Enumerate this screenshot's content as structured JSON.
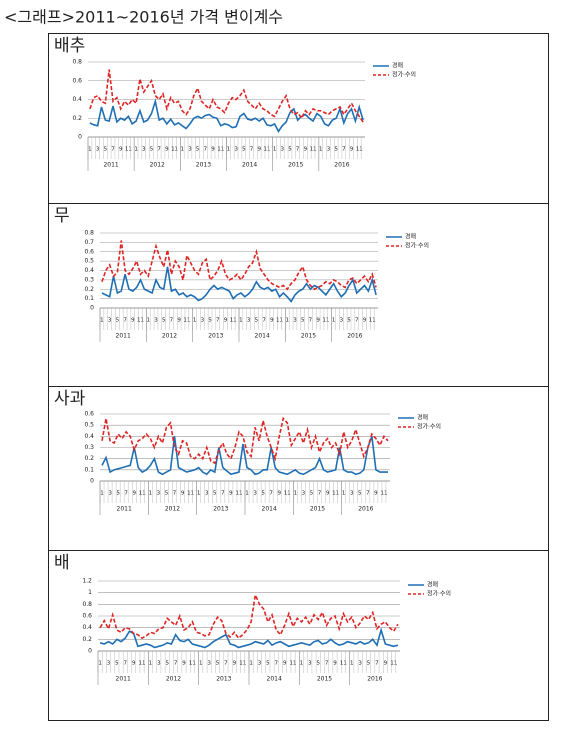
{
  "title": "<그래프>2011~2016년 가격 변이계수",
  "chart_data": [
    {
      "type": "line",
      "title": "배추",
      "categories": [
        "1",
        null,
        "3",
        null,
        "5",
        null,
        "7",
        null,
        "9",
        null,
        "11",
        null,
        "1",
        null,
        "3",
        null,
        "5",
        null,
        "7",
        null,
        "9",
        null,
        "11",
        null,
        "1",
        null,
        "3",
        null,
        "5",
        null,
        "7",
        null,
        "9",
        null,
        "11",
        null,
        "1",
        null,
        "3",
        null,
        "5",
        null,
        "7",
        null,
        "9",
        null,
        "11",
        null,
        "1",
        null,
        "3",
        null,
        "5",
        null,
        "7",
        null,
        "9",
        null,
        "11",
        null,
        "1",
        null,
        "3",
        null,
        "5",
        null,
        "7",
        null,
        "9",
        null,
        "11",
        null
      ],
      "groups": [
        "2011",
        "2012",
        "2013",
        "2014",
        "2015",
        "2016"
      ],
      "ylim": [
        0,
        0.8
      ],
      "yticks": [
        0,
        0.2,
        0.4,
        0.6,
        0.8
      ],
      "grid": true,
      "series": [
        {
          "name": "경매",
          "color": "#1f6fb4",
          "linestyle": "solid",
          "values": [
            0.15,
            0.13,
            0.12,
            0.32,
            0.18,
            0.17,
            0.33,
            0.16,
            0.2,
            0.18,
            0.22,
            0.14,
            0.17,
            0.28,
            0.16,
            0.18,
            0.25,
            0.38,
            0.18,
            0.2,
            0.14,
            0.19,
            0.13,
            0.15,
            0.12,
            0.09,
            0.14,
            0.2,
            0.22,
            0.2,
            0.23,
            0.24,
            0.21,
            0.2,
            0.12,
            0.14,
            0.13,
            0.1,
            0.11,
            0.22,
            0.25,
            0.19,
            0.18,
            0.2,
            0.17,
            0.2,
            0.13,
            0.12,
            0.14,
            0.06,
            0.12,
            0.16,
            0.26,
            0.3,
            0.18,
            0.22,
            0.24,
            0.2,
            0.17,
            0.25,
            0.22,
            0.14,
            0.12,
            0.18,
            0.2,
            0.3,
            0.15,
            0.25,
            0.3,
            0.17,
            0.32,
            0.18
          ]
        },
        {
          "name": "정가·수의",
          "color": "#e02424",
          "linestyle": "dashed",
          "values": [
            0.3,
            0.42,
            0.44,
            0.38,
            0.36,
            0.72,
            0.38,
            0.42,
            0.3,
            0.38,
            0.34,
            0.4,
            0.36,
            0.62,
            0.48,
            0.54,
            0.6,
            0.44,
            0.4,
            0.46,
            0.3,
            0.42,
            0.36,
            0.38,
            0.28,
            0.24,
            0.3,
            0.44,
            0.52,
            0.38,
            0.34,
            0.3,
            0.4,
            0.32,
            0.3,
            0.26,
            0.36,
            0.42,
            0.4,
            0.44,
            0.5,
            0.38,
            0.34,
            0.3,
            0.36,
            0.3,
            0.28,
            0.24,
            0.22,
            0.3,
            0.38,
            0.44,
            0.3,
            0.24,
            0.26,
            0.2,
            0.28,
            0.24,
            0.3,
            0.28,
            0.28,
            0.26,
            0.24,
            0.28,
            0.3,
            0.32,
            0.24,
            0.3,
            0.36,
            0.28,
            0.22,
            0.16
          ]
        }
      ]
    },
    {
      "type": "line",
      "title": "무",
      "categories": [
        "1",
        null,
        "3",
        null,
        "5",
        null,
        "7",
        null,
        "9",
        null,
        "11",
        null,
        "1",
        null,
        "3",
        null,
        "5",
        null,
        "7",
        null,
        "9",
        null,
        "11",
        null,
        "1",
        null,
        "3",
        null,
        "5",
        null,
        "7",
        null,
        "9",
        null,
        "11",
        null,
        "1",
        null,
        "3",
        null,
        "5",
        null,
        "7",
        null,
        "9",
        null,
        "11",
        null,
        "1",
        null,
        "3",
        null,
        "5",
        null,
        "7",
        null,
        "9",
        null,
        "11",
        null,
        "1",
        null,
        "3",
        null,
        "5",
        null,
        "7",
        null,
        "9",
        null,
        "11",
        null
      ],
      "groups": [
        "2011",
        "2012",
        "2013",
        "2014",
        "2015",
        "2016"
      ],
      "ylim": [
        0,
        0.8
      ],
      "yticks": [
        0,
        0.1,
        0.2,
        0.3,
        0.4,
        0.5,
        0.6,
        0.7,
        0.8
      ],
      "grid": true,
      "series": [
        {
          "name": "경매",
          "color": "#1f6fb4",
          "linestyle": "solid",
          "values": [
            0.16,
            0.14,
            0.12,
            0.34,
            0.16,
            0.18,
            0.36,
            0.2,
            0.18,
            0.22,
            0.3,
            0.2,
            0.18,
            0.16,
            0.3,
            0.22,
            0.2,
            0.44,
            0.18,
            0.2,
            0.14,
            0.16,
            0.12,
            0.14,
            0.12,
            0.08,
            0.1,
            0.14,
            0.2,
            0.24,
            0.2,
            0.22,
            0.2,
            0.18,
            0.1,
            0.14,
            0.16,
            0.12,
            0.15,
            0.2,
            0.28,
            0.22,
            0.2,
            0.22,
            0.18,
            0.2,
            0.12,
            0.16,
            0.12,
            0.07,
            0.14,
            0.18,
            0.2,
            0.26,
            0.2,
            0.24,
            0.22,
            0.18,
            0.14,
            0.2,
            0.26,
            0.18,
            0.12,
            0.16,
            0.24,
            0.3,
            0.16,
            0.2,
            0.24,
            0.18,
            0.3,
            0.14
          ]
        },
        {
          "name": "정가·수의",
          "color": "#e02424",
          "linestyle": "dashed",
          "values": [
            0.28,
            0.4,
            0.46,
            0.34,
            0.38,
            0.72,
            0.4,
            0.36,
            0.42,
            0.5,
            0.36,
            0.4,
            0.34,
            0.5,
            0.66,
            0.54,
            0.44,
            0.62,
            0.36,
            0.5,
            0.44,
            0.3,
            0.56,
            0.48,
            0.4,
            0.36,
            0.48,
            0.52,
            0.3,
            0.34,
            0.4,
            0.5,
            0.36,
            0.3,
            0.32,
            0.36,
            0.3,
            0.36,
            0.44,
            0.48,
            0.6,
            0.42,
            0.36,
            0.3,
            0.26,
            0.24,
            0.22,
            0.24,
            0.2,
            0.26,
            0.3,
            0.38,
            0.44,
            0.3,
            0.24,
            0.2,
            0.22,
            0.24,
            0.28,
            0.26,
            0.3,
            0.28,
            0.24,
            0.22,
            0.3,
            0.32,
            0.26,
            0.3,
            0.34,
            0.28,
            0.36,
            0.22
          ]
        }
      ]
    },
    {
      "type": "line",
      "title": "사과",
      "categories": [
        "1",
        null,
        "3",
        null,
        "5",
        null,
        "7",
        null,
        "9",
        null,
        "11",
        null,
        "1",
        null,
        "3",
        null,
        "5",
        null,
        "7",
        null,
        "9",
        null,
        "11",
        null,
        "1",
        null,
        "3",
        null,
        "5",
        null,
        "7",
        null,
        "9",
        null,
        "11",
        null,
        "1",
        null,
        "3",
        null,
        "5",
        null,
        "7",
        null,
        "9",
        null,
        "11",
        null,
        "1",
        null,
        "3",
        null,
        "5",
        null,
        "7",
        null,
        "9",
        null,
        "11",
        null,
        "1",
        null,
        "3",
        null,
        "5",
        null,
        "7",
        null,
        "9",
        null,
        "11",
        null
      ],
      "groups": [
        "2011",
        "2012",
        "2013",
        "2014",
        "2015",
        "2016"
      ],
      "ylim": [
        0,
        0.6
      ],
      "yticks": [
        0,
        0.1,
        0.2,
        0.3,
        0.4,
        0.5,
        0.6
      ],
      "grid": true,
      "series": [
        {
          "name": "경매",
          "color": "#1f6fb4",
          "linestyle": "solid",
          "values": [
            0.14,
            0.21,
            0.08,
            0.1,
            0.11,
            0.12,
            0.13,
            0.14,
            0.3,
            0.12,
            0.08,
            0.1,
            0.14,
            0.2,
            0.08,
            0.06,
            0.08,
            0.1,
            0.4,
            0.12,
            0.1,
            0.08,
            0.09,
            0.1,
            0.12,
            0.08,
            0.06,
            0.1,
            0.08,
            0.3,
            0.12,
            0.09,
            0.06,
            0.07,
            0.08,
            0.33,
            0.12,
            0.1,
            0.06,
            0.07,
            0.1,
            0.1,
            0.3,
            0.12,
            0.08,
            0.07,
            0.06,
            0.08,
            0.1,
            0.07,
            0.06,
            0.08,
            0.1,
            0.12,
            0.2,
            0.1,
            0.08,
            0.09,
            0.1,
            0.3,
            0.1,
            0.08,
            0.08,
            0.06,
            0.07,
            0.1,
            0.3,
            0.4,
            0.1,
            0.08,
            0.08,
            0.08
          ]
        },
        {
          "name": "정가·수의",
          "color": "#e02424",
          "linestyle": "dashed",
          "values": [
            0.36,
            0.56,
            0.36,
            0.34,
            0.42,
            0.38,
            0.44,
            0.4,
            0.28,
            0.36,
            0.38,
            0.42,
            0.38,
            0.3,
            0.4,
            0.34,
            0.48,
            0.52,
            0.3,
            0.24,
            0.36,
            0.34,
            0.22,
            0.2,
            0.24,
            0.2,
            0.3,
            0.18,
            0.16,
            0.28,
            0.34,
            0.24,
            0.2,
            0.3,
            0.44,
            0.4,
            0.26,
            0.22,
            0.48,
            0.36,
            0.54,
            0.4,
            0.3,
            0.2,
            0.4,
            0.56,
            0.52,
            0.32,
            0.38,
            0.44,
            0.34,
            0.46,
            0.3,
            0.4,
            0.26,
            0.34,
            0.38,
            0.3,
            0.34,
            0.24,
            0.44,
            0.3,
            0.36,
            0.46,
            0.34,
            0.22,
            0.3,
            0.42,
            0.38,
            0.32,
            0.4,
            0.36
          ]
        }
      ]
    },
    {
      "type": "line",
      "title": "배",
      "categories": [
        "1",
        null,
        "3",
        null,
        "5",
        null,
        "7",
        null,
        "9",
        null,
        "11",
        null,
        "1",
        null,
        "3",
        null,
        "5",
        null,
        "7",
        null,
        "9",
        null,
        "11",
        null,
        "1",
        null,
        "3",
        null,
        "5",
        null,
        "7",
        null,
        "9",
        null,
        "11",
        null,
        "1",
        null,
        "3",
        null,
        "5",
        null,
        "7",
        null,
        "9",
        null,
        "11",
        null,
        "1",
        null,
        "3",
        null,
        "5",
        null,
        "7",
        null,
        "9",
        null,
        "11",
        null,
        "1",
        null,
        "3",
        null,
        "5",
        null,
        "7",
        null,
        "9",
        null,
        "11",
        null
      ],
      "groups": [
        "2011",
        "2012",
        "2013",
        "2014",
        "2015",
        "2016"
      ],
      "ylim": [
        0,
        1.2
      ],
      "yticks": [
        0,
        0.2,
        0.4,
        0.6,
        0.8,
        1,
        1.2
      ],
      "grid": true,
      "series": [
        {
          "name": "경매",
          "color": "#1f6fb4",
          "linestyle": "solid",
          "values": [
            0.14,
            0.12,
            0.16,
            0.12,
            0.2,
            0.16,
            0.22,
            0.34,
            0.3,
            0.08,
            0.1,
            0.12,
            0.1,
            0.06,
            0.08,
            0.1,
            0.14,
            0.12,
            0.28,
            0.18,
            0.16,
            0.2,
            0.12,
            0.1,
            0.08,
            0.06,
            0.1,
            0.16,
            0.2,
            0.24,
            0.28,
            0.12,
            0.1,
            0.06,
            0.08,
            0.1,
            0.12,
            0.16,
            0.14,
            0.12,
            0.18,
            0.1,
            0.14,
            0.16,
            0.12,
            0.08,
            0.1,
            0.12,
            0.14,
            0.12,
            0.1,
            0.16,
            0.18,
            0.12,
            0.14,
            0.2,
            0.14,
            0.1,
            0.12,
            0.16,
            0.14,
            0.12,
            0.16,
            0.12,
            0.14,
            0.2,
            0.1,
            0.36,
            0.12,
            0.1,
            0.08,
            0.1
          ]
        },
        {
          "name": "정가·수의",
          "color": "#e02424",
          "linestyle": "dashed",
          "values": [
            0.4,
            0.52,
            0.38,
            0.62,
            0.36,
            0.32,
            0.4,
            0.38,
            0.3,
            0.28,
            0.22,
            0.26,
            0.32,
            0.3,
            0.38,
            0.4,
            0.56,
            0.5,
            0.44,
            0.6,
            0.36,
            0.4,
            0.5,
            0.32,
            0.3,
            0.26,
            0.28,
            0.46,
            0.58,
            0.52,
            0.3,
            0.24,
            0.32,
            0.22,
            0.28,
            0.36,
            0.5,
            0.96,
            0.8,
            0.72,
            0.5,
            0.62,
            0.36,
            0.28,
            0.44,
            0.64,
            0.42,
            0.56,
            0.5,
            0.58,
            0.46,
            0.62,
            0.54,
            0.66,
            0.44,
            0.56,
            0.6,
            0.38,
            0.64,
            0.5,
            0.58,
            0.4,
            0.48,
            0.6,
            0.54,
            0.66,
            0.38,
            0.46,
            0.5,
            0.4,
            0.34,
            0.46
          ]
        }
      ]
    }
  ]
}
